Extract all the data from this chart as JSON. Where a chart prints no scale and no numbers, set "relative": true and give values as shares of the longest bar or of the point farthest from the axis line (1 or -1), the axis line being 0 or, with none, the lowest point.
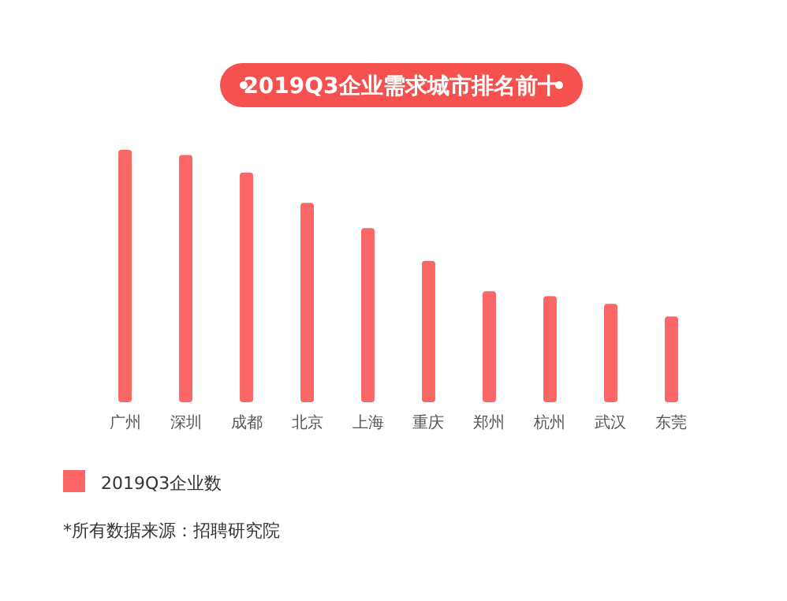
{
  "chart_data": {
    "type": "bar",
    "title": "2019Q3企业需求城市排名前十",
    "relative": true,
    "categories": [
      "广州",
      "深圳",
      "成都",
      "北京",
      "上海",
      "重庆",
      "郑州",
      "杭州",
      "武汉",
      "东莞"
    ],
    "series": [
      {
        "name": "2019Q3企业数",
        "color": "#fb6766",
        "values": [
          1,
          0.98,
          0.91,
          0.79,
          0.69,
          0.56,
          0.44,
          0.42,
          0.39,
          0.34
        ]
      }
    ],
    "legend": "bottom left",
    "annotations": [
      "*所有数据来源：招聘研究院"
    ]
  }
}
